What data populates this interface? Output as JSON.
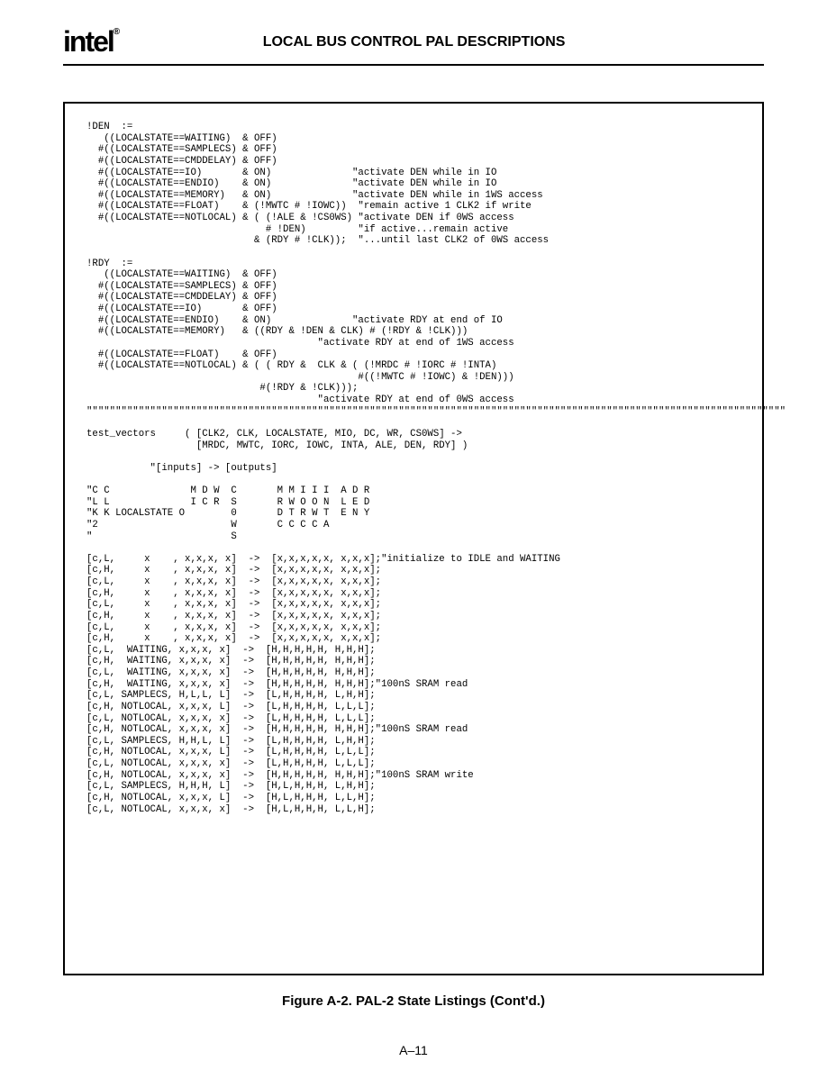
{
  "header": {
    "logo": "intel",
    "logo_reg": "®",
    "title": "LOCAL BUS CONTROL PAL DESCRIPTIONS"
  },
  "code": "!DEN  :=\n   ((LOCALSTATE==WAITING)  & OFF)\n  #((LOCALSTATE==SAMPLECS) & OFF)\n  #((LOCALSTATE==CMDDELAY) & OFF)\n  #((LOCALSTATE==IO)       & ON)              \"activate DEN while in IO\n  #((LOCALSTATE==ENDIO)    & ON)              \"activate DEN while in IO\n  #((LOCALSTATE==MEMORY)   & ON)              \"activate DEN while in 1WS access\n  #((LOCALSTATE==FLOAT)    & (!MWTC # !IOWC))  \"remain active 1 CLK2 if write\n  #((LOCALSTATE==NOTLOCAL) & ( (!ALE & !CS0WS) \"activate DEN if 0WS access\n                               # !DEN)         \"if active...remain active\n                             & (RDY # !CLK));  \"...until last CLK2 of 0WS access\n\n!RDY  :=\n   ((LOCALSTATE==WAITING)  & OFF)\n  #((LOCALSTATE==SAMPLECS) & OFF)\n  #((LOCALSTATE==CMDDELAY) & OFF)\n  #((LOCALSTATE==IO)       & OFF)\n  #((LOCALSTATE==ENDIO)    & ON)              \"activate RDY at end of IO\n  #((LOCALSTATE==MEMORY)   & ((RDY & !DEN & CLK) # (!RDY & !CLK)))\n                                        \"activate RDY at end of 1WS access\n  #((LOCALSTATE==FLOAT)    & OFF)\n  #((LOCALSTATE==NOTLOCAL) & ( ( RDY &  CLK & ( (!MRDC # !IORC # !INTA)\n                                               #((!MWTC # !IOWC) & !DEN)))\n                              #(!RDY & !CLK)));\n                                        \"activate RDY at end of 0WS access\n\"\"\"\"\"\"\"\"\"\"\"\"\"\"\"\"\"\"\"\"\"\"\"\"\"\"\"\"\"\"\"\"\"\"\"\"\"\"\"\"\"\"\"\"\"\"\"\"\"\"\"\"\"\"\"\"\"\"\"\"\"\"\"\"\"\"\"\"\"\"\"\"\"\"\"\"\"\"\"\"\"\"\"\"\"\"\"\"\"\"\"\"\"\"\"\"\"\"\"\"\"\"\"\"\"\"\"\"\"\"\"\"\"\"\"\"\"\"\"\"\"\n\ntest_vectors     ( [CLK2, CLK, LOCALSTATE, MIO, DC, WR, CS0WS] ->\n                   [MRDC, MWTC, IORC, IOWC, INTA, ALE, DEN, RDY] )\n\n           \"[inputs] -> [outputs]\n\n\"C C              M D W  C       M M I I I  A D R\n\"L L              I C R  S       R W O O N  L E D\n\"K K LOCALSTATE O        0       D T R W T  E N Y\n\"2                       W       C C C C A\n\"                        S\n\n[c,L,     x    , x,x,x, x]  ->  [x,x,x,x,x, x,x,x];\"initialize to IDLE and WAITING\n[c,H,     x    , x,x,x, x]  ->  [x,x,x,x,x, x,x,x];\n[c,L,     x    , x,x,x, x]  ->  [x,x,x,x,x, x,x,x];\n[c,H,     x    , x,x,x, x]  ->  [x,x,x,x,x, x,x,x];\n[c,L,     x    , x,x,x, x]  ->  [x,x,x,x,x, x,x,x];\n[c,H,     x    , x,x,x, x]  ->  [x,x,x,x,x, x,x,x];\n[c,L,     x    , x,x,x, x]  ->  [x,x,x,x,x, x,x,x];\n[c,H,     x    , x,x,x, x]  ->  [x,x,x,x,x, x,x,x];\n[c,L,  WAITING, x,x,x, x]  ->  [H,H,H,H,H, H,H,H];\n[c,H,  WAITING, x,x,x, x]  ->  [H,H,H,H,H, H,H,H];\n[c,L,  WAITING, x,x,x, x]  ->  [H,H,H,H,H, H,H,H];\n[c,H,  WAITING, x,x,x, x]  ->  [H,H,H,H,H, H,H,H];\"100nS SRAM read\n[c,L, SAMPLECS, H,L,L, L]  ->  [L,H,H,H,H, L,H,H];\n[c,H, NOTLOCAL, x,x,x, L]  ->  [L,H,H,H,H, L,L,L];\n[c,L, NOTLOCAL, x,x,x, x]  ->  [L,H,H,H,H, L,L,L];\n[c,H, NOTLOCAL, x,x,x, x]  ->  [H,H,H,H,H, H,H,H];\"100nS SRAM read\n[c,L, SAMPLECS, H,H,L, L]  ->  [L,H,H,H,H, L,H,H];\n[c,H, NOTLOCAL, x,x,x, L]  ->  [L,H,H,H,H, L,L,L];\n[c,L, NOTLOCAL, x,x,x, x]  ->  [L,H,H,H,H, L,L,L];\n[c,H, NOTLOCAL, x,x,x, x]  ->  [H,H,H,H,H, H,H,H];\"100nS SRAM write\n[c,L, SAMPLECS, H,H,H, L]  ->  [H,L,H,H,H, L,H,H];\n[c,H, NOTLOCAL, x,x,x, L]  ->  [H,L,H,H,H, L,L,H];\n[c,L, NOTLOCAL, x,x,x, x]  ->  [H,L,H,H,H, L,L,H];",
  "caption": "Figure A-2.  PAL-2 State Listings (Cont'd.)",
  "page_number": "A–11",
  "colors": {
    "text": "#000000",
    "background": "#ffffff",
    "watermark": "rgba(130,130,230,0.25)"
  }
}
